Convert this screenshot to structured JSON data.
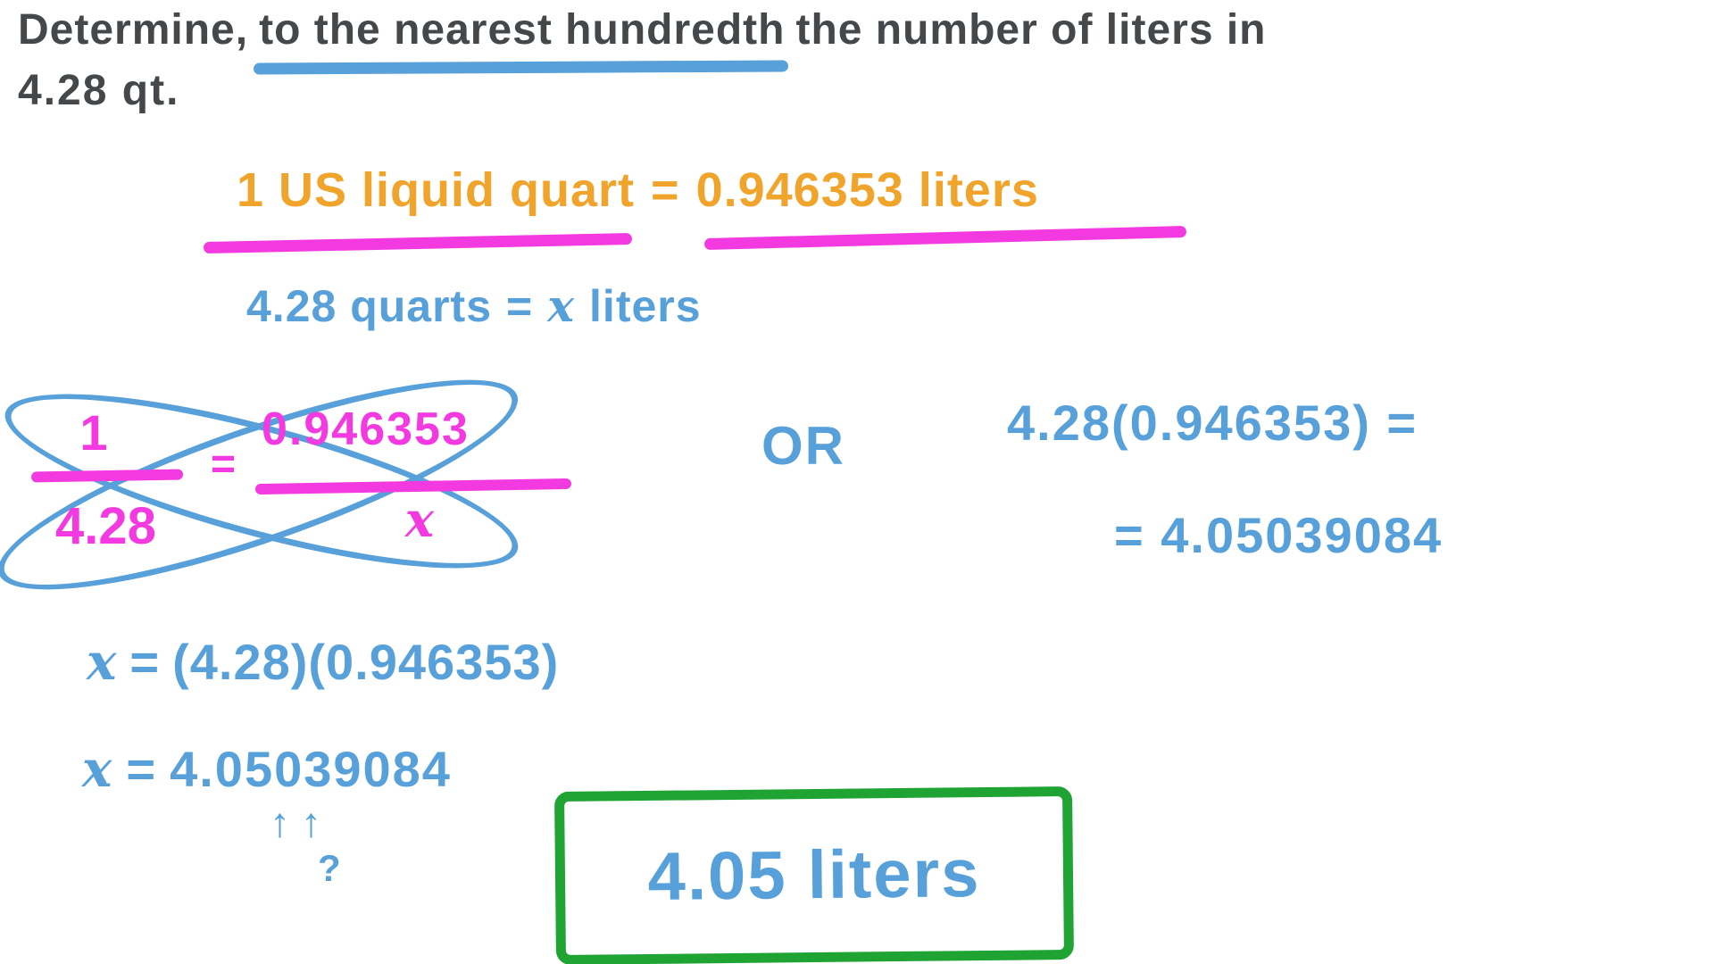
{
  "problem": {
    "prefix": "Determine,",
    "underlined": "to the nearest hundredth",
    "suffix": "the number of liters in",
    "line2": "4.28 qt."
  },
  "fact": {
    "quart_label": "1 US liquid quart",
    "equals": "=",
    "liters_label": "0.946353 liters"
  },
  "setup": {
    "lhs": "4.28 quarts",
    "equals": "=",
    "variable": "x",
    "unit": "liters"
  },
  "proportion": {
    "left_numerator": "1",
    "left_denominator": "4.28",
    "equals": "=",
    "right_numerator": "0.946353",
    "right_denominator": "x"
  },
  "or_label": "OR",
  "direct_method": {
    "line1": "4.28(0.946353) =",
    "line2": "= 4.05039084"
  },
  "solution": {
    "variable1": "x",
    "equals1": "=",
    "rhs1": "(4.28)(0.946353)",
    "variable2": "x",
    "equals2": "=",
    "rhs2": "4.05039084",
    "arrow1": "↑",
    "arrow2": "↑",
    "question_mark": "?"
  },
  "answer": "4.05 liters",
  "colors": {
    "ink": "#45484b",
    "blue": "#57a0d9",
    "orange": "#f0a42c",
    "pink": "#f23ae0",
    "green": "#1fa434"
  }
}
